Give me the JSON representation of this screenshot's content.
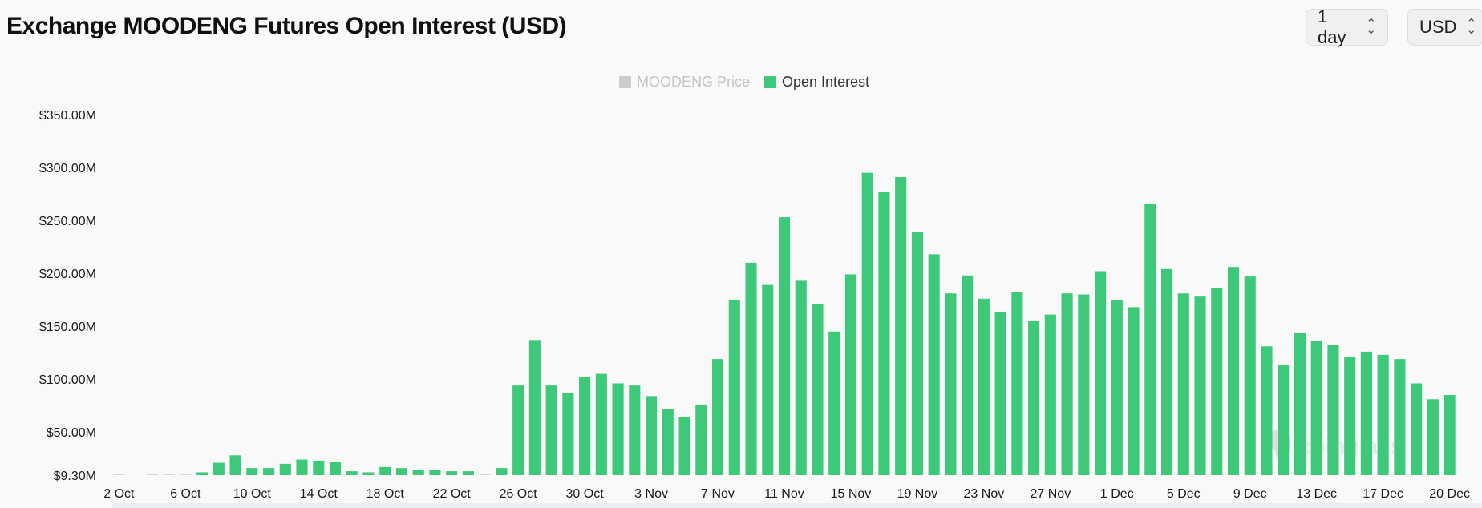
{
  "header": {
    "title": "Exchange MOODENG Futures Open Interest (USD)",
    "interval_select": "1 day",
    "currency_select": "USD"
  },
  "legend": [
    {
      "label": "MOODENG Price",
      "color": "#cccccc",
      "text_color": "#c4c4c4"
    },
    {
      "label": "Open Interest",
      "color": "#3ec97a",
      "text_color": "#333333"
    }
  ],
  "watermark": "coinglass",
  "colors": {
    "bar": "#3ec97a",
    "axis_text": "#1a1a1a",
    "background": "#f9f9f9"
  },
  "chart_data": {
    "type": "bar",
    "series": [
      {
        "name": "Open Interest",
        "values": [
          0.5,
          0,
          4,
          7,
          7,
          12,
          21,
          28,
          16,
          16,
          20,
          24,
          23,
          22,
          13,
          12,
          17,
          16,
          14,
          14,
          13,
          13,
          9,
          16,
          94,
          137,
          94,
          87,
          102,
          105,
          96,
          94,
          84,
          72,
          64,
          76,
          119,
          175,
          210,
          189,
          253,
          193,
          171,
          145,
          199,
          295,
          277,
          291,
          239,
          218,
          181,
          198,
          176,
          163,
          182,
          155,
          161,
          181,
          180,
          202,
          175,
          168,
          266,
          204,
          181,
          178,
          186,
          206,
          197,
          131,
          113,
          144,
          136,
          132,
          121,
          126,
          123,
          119,
          96,
          81,
          85
        ]
      }
    ],
    "x_start": "2 Oct",
    "x_end": "20 Dec",
    "x_tick_labels": [
      "2 Oct",
      "6 Oct",
      "10 Oct",
      "14 Oct",
      "18 Oct",
      "22 Oct",
      "26 Oct",
      "30 Oct",
      "3 Nov",
      "7 Nov",
      "11 Nov",
      "15 Nov",
      "19 Nov",
      "23 Nov",
      "27 Nov",
      "1 Dec",
      "5 Dec",
      "9 Dec",
      "13 Dec",
      "17 Dec",
      "20 Dec"
    ],
    "y_tick_labels": [
      "$9.30M",
      "$50.00M",
      "$100.00M",
      "$150.00M",
      "$200.00M",
      "$250.00M",
      "$300.00M",
      "$350.00M"
    ],
    "y_ticks": [
      9.3,
      50,
      100,
      150,
      200,
      250,
      300,
      350
    ],
    "y_unit": "USD millions",
    "ylim": [
      9.3,
      350
    ],
    "grid": false,
    "legend_position": "top-center"
  }
}
